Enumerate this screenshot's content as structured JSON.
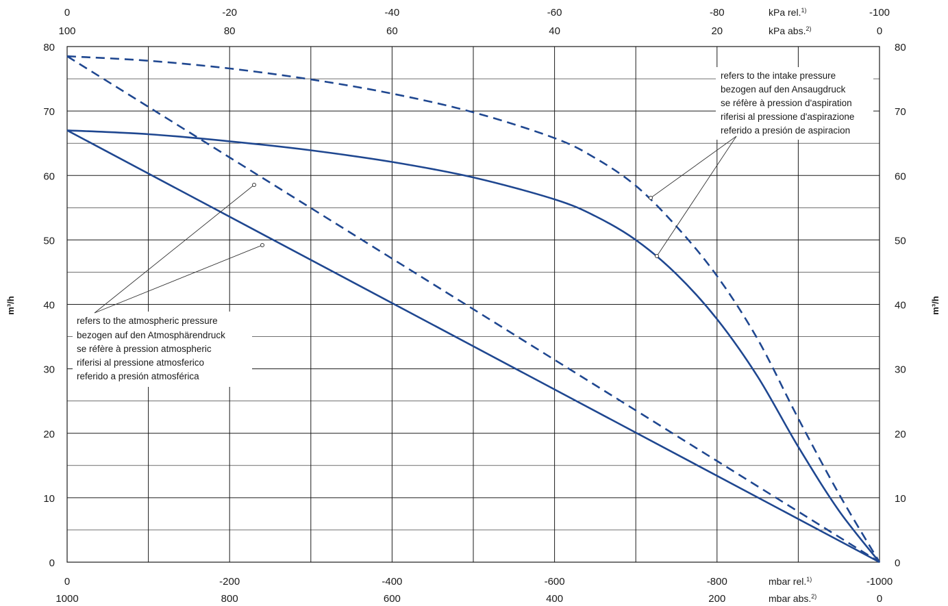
{
  "chart_data": {
    "type": "line",
    "x_bottom": {
      "primary_ticks": [
        "0",
        "-200",
        "-400",
        "-600",
        "-800",
        "-1000"
      ],
      "primary_unit": "mbar rel.",
      "primary_unit_sup": "1)",
      "secondary_ticks": [
        "1000",
        "800",
        "600",
        "400",
        "200",
        "0"
      ],
      "secondary_unit": "mbar abs.",
      "secondary_unit_sup": "2)",
      "range": [
        0,
        -1000
      ]
    },
    "x_top": {
      "primary_ticks": [
        "0",
        "-20",
        "-40",
        "-60",
        "-80",
        "-100"
      ],
      "primary_unit": "kPa rel.",
      "primary_unit_sup": "1)",
      "secondary_ticks": [
        "100",
        "80",
        "60",
        "40",
        "20",
        "0"
      ],
      "secondary_unit": "kPa abs.",
      "secondary_unit_sup": "2)"
    },
    "y": {
      "label": "m³/h",
      "ticks": [
        "0",
        "10",
        "20",
        "30",
        "40",
        "50",
        "60",
        "70",
        "80"
      ],
      "range": [
        0,
        80
      ]
    },
    "grid": true,
    "series": [
      {
        "style": "solid",
        "color": "#1f4790",
        "x": [
          0,
          -1000
        ],
        "y": [
          67,
          0
        ]
      },
      {
        "style": "dashed",
        "color": "#1f4790",
        "x": [
          0,
          -1000
        ],
        "y": [
          78.5,
          0
        ]
      },
      {
        "style": "solid",
        "color": "#1f4790",
        "x": [
          0,
          -100,
          -200,
          -300,
          -400,
          -500,
          -600,
          -650,
          -700,
          -750,
          -800,
          -850,
          -900,
          -950,
          -1000
        ],
        "y": [
          67,
          66.4,
          65.3,
          63.9,
          62.1,
          59.7,
          56.3,
          53.7,
          50.0,
          44.7,
          37.7,
          28.8,
          17.9,
          8.0,
          0
        ]
      },
      {
        "style": "dashed",
        "color": "#1f4790",
        "x": [
          0,
          -100,
          -200,
          -300,
          -400,
          -500,
          -600,
          -650,
          -700,
          -750,
          -800,
          -850,
          -900,
          -950,
          -1000
        ],
        "y": [
          78.5,
          77.8,
          76.6,
          74.9,
          72.7,
          69.8,
          65.8,
          62.7,
          58.4,
          52.1,
          44.4,
          34.6,
          22.3,
          10.6,
          0
        ]
      }
    ],
    "annotations": {
      "atmospheric": [
        "refers to the atmospheric pressure",
        "bezogen auf den Atmosphärendruck",
        "se réfère à pression atmospheric",
        "riferisi al pressione atmosferico",
        "referido a presión atmosférica"
      ],
      "intake": [
        "refers to the intake pressure",
        "bezogen auf den Ansaugdruck",
        "se réfère à pression d'aspiration",
        "riferisi al pressione d'aspirazione",
        "referido a presión de aspiracion"
      ]
    }
  }
}
